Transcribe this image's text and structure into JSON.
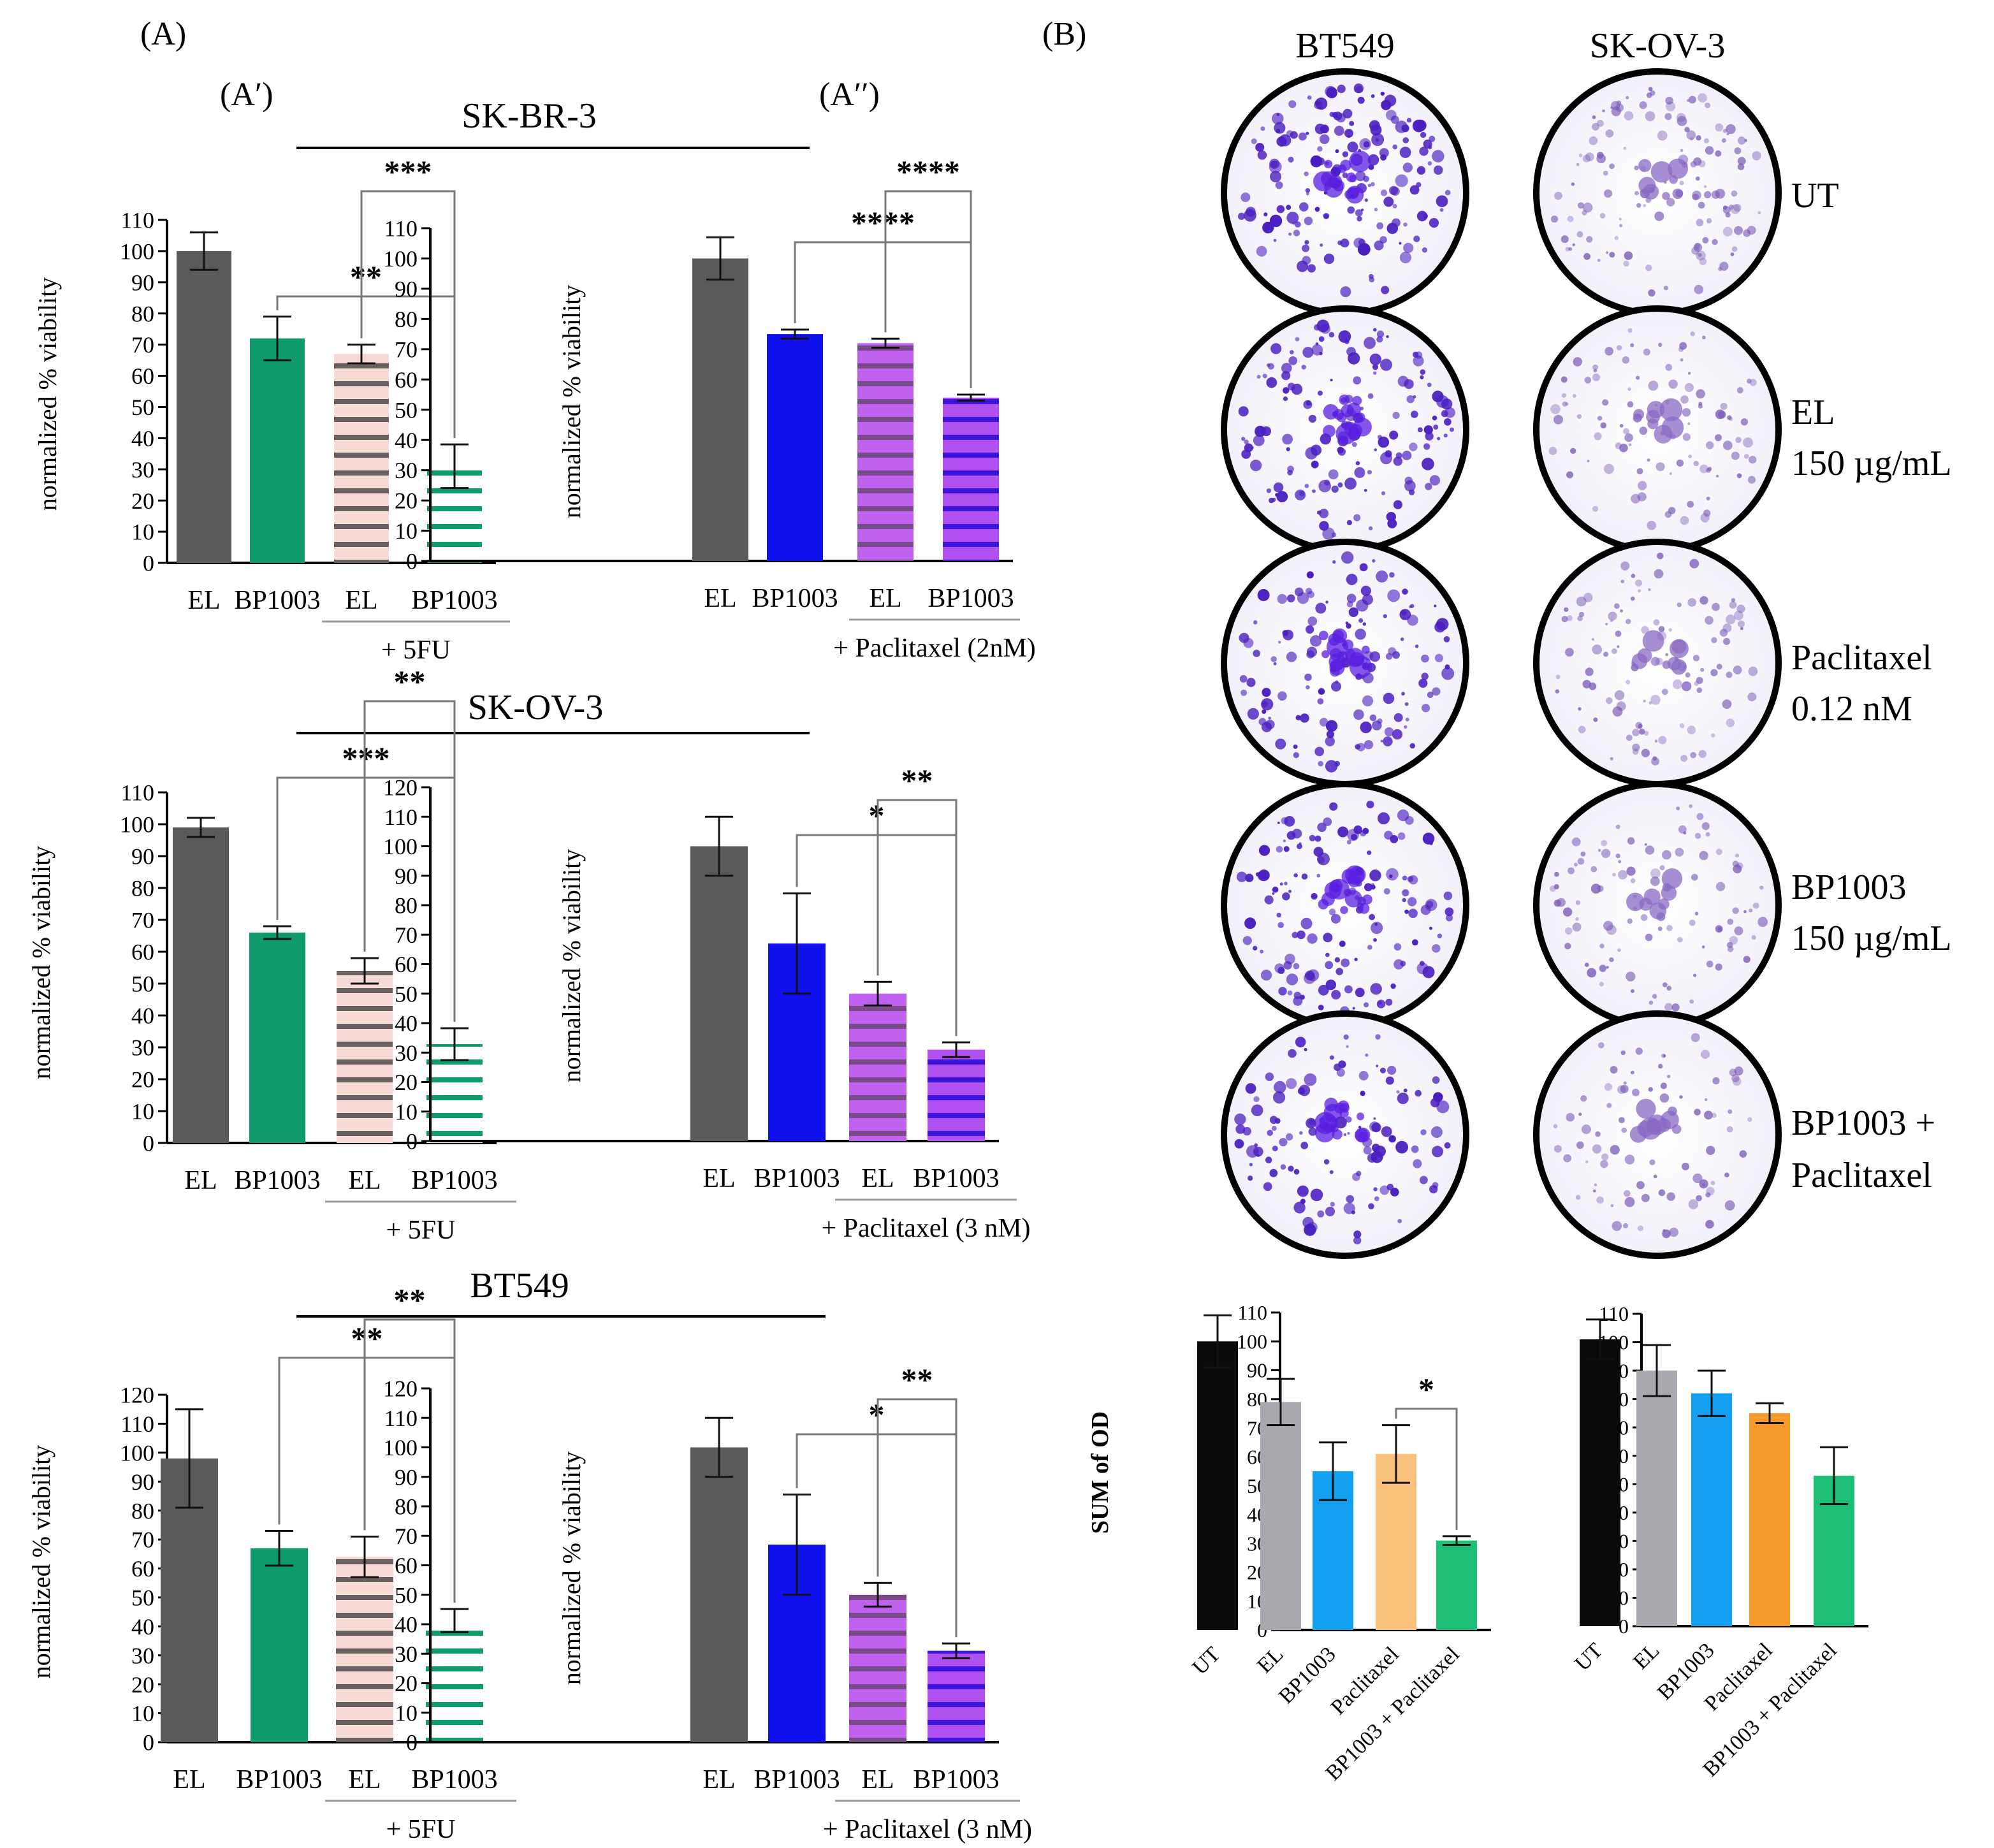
{
  "panel_labels": {
    "A": "(A)",
    "A_prime": "(A′)",
    "A_dprime": "(A′′)",
    "B": "(B)"
  },
  "cell_lines": {
    "sk_br_3": "SK-BR-3",
    "sk_ov_3": "SK-OV-3",
    "bt549": "BT549"
  },
  "colony_assay": {
    "col_titles": [
      "BT549",
      "SK-OV-3"
    ],
    "rows": [
      {
        "label": "UT",
        "label2": ""
      },
      {
        "label": "EL",
        "label2": "150 µg/mL"
      },
      {
        "label": "Paclitaxel",
        "label2": "0.12 nM"
      },
      {
        "label": "BP1003",
        "label2": "150 µg/mL"
      },
      {
        "label": "BP1003 +",
        "label2": "Paclitaxel"
      }
    ]
  },
  "colors": {
    "gray": "#5a5a5a",
    "green": "#0f9a6a",
    "blue": "#1010ee",
    "pink": "#f7d9d6",
    "stripe_dark": "#6a6060",
    "stripe_green": "#109b6b",
    "magenta": "#c060ee",
    "purple_stripe": "#7a4a8a",
    "violet": "#b050f0",
    "violet_stripe": "#3c14d8",
    "od_black": "#0a0a0a",
    "od_gray": "#a8a8ae",
    "od_blue": "#14a0f0",
    "od_peach": "#fbc27e",
    "od_orange": "#f79a2e",
    "od_green": "#1dbf78",
    "colony": "#4a2bb0"
  },
  "chart_data": [
    {
      "id": "skbr3_5fu",
      "type": "bar",
      "ylabel": "normalized % viability",
      "ylim": [
        0,
        110
      ],
      "ytick_step": 10,
      "categories": [
        "EL",
        "BP1003",
        "EL",
        "BP1003"
      ],
      "values": [
        100,
        72,
        67,
        31
      ],
      "errors": [
        6,
        7,
        3,
        7
      ],
      "group_label": "+ 5FU",
      "fills": [
        "gray",
        "green",
        "pink_stripe",
        "green_stripe"
      ],
      "significance": [
        {
          "from": 1,
          "to": 3,
          "label": "**"
        },
        {
          "from": 2,
          "to": 3,
          "label": "***"
        }
      ]
    },
    {
      "id": "skbr3_ptx",
      "type": "bar",
      "ylabel": "normalized % viability",
      "ylim": [
        0,
        110
      ],
      "ytick_step": 10,
      "categories": [
        "EL",
        "BP1003",
        "EL",
        "BP1003"
      ],
      "values": [
        100,
        75,
        72,
        54
      ],
      "errors": [
        7,
        1.5,
        1.5,
        1
      ],
      "group_label": "+ Paclitaxel (2nM)",
      "fills": [
        "gray",
        "blue",
        "magenta_stripe",
        "violet_stripe"
      ],
      "significance": [
        {
          "from": 1,
          "to": 3,
          "label": "****"
        },
        {
          "from": 2,
          "to": 3,
          "label": "****"
        }
      ]
    },
    {
      "id": "skov3_5fu",
      "type": "bar",
      "ylabel": "normalized % viability",
      "ylim": [
        0,
        110
      ],
      "ytick_step": 10,
      "categories": [
        "EL",
        "BP1003",
        "EL",
        "BP1003"
      ],
      "values": [
        99,
        66,
        54,
        31
      ],
      "errors": [
        3,
        2,
        4,
        5
      ],
      "group_label": "+ 5FU",
      "fills": [
        "gray",
        "green",
        "pink_stripe",
        "green_stripe"
      ],
      "significance": [
        {
          "from": 1,
          "to": 3,
          "label": "***"
        },
        {
          "from": 2,
          "to": 3,
          "label": "**"
        }
      ]
    },
    {
      "id": "skov3_ptx",
      "type": "bar",
      "ylabel": "normalized % viability",
      "ylim": [
        0,
        120
      ],
      "ytick_step": 10,
      "categories": [
        "EL",
        "BP1003",
        "EL",
        "BP1003"
      ],
      "values": [
        100,
        67,
        50,
        31
      ],
      "errors": [
        10,
        17,
        4,
        2.5
      ],
      "group_label": "+ Paclitaxel (3 nM)",
      "fills": [
        "gray",
        "blue",
        "magenta_stripe",
        "violet_stripe"
      ],
      "significance": [
        {
          "from": 1,
          "to": 3,
          "label": "*"
        },
        {
          "from": 2,
          "to": 3,
          "label": "**"
        }
      ]
    },
    {
      "id": "bt549_5fu",
      "type": "bar",
      "ylabel": "normalized % viability",
      "ylim": [
        0,
        120
      ],
      "ytick_step": 10,
      "categories": [
        "EL",
        "BP1003",
        "EL",
        "BP1003"
      ],
      "values": [
        98,
        67,
        64,
        42
      ],
      "errors": [
        17,
        6,
        7,
        4
      ],
      "group_label": "+ 5FU",
      "fills": [
        "gray",
        "green",
        "pink_stripe",
        "green_stripe"
      ],
      "significance": [
        {
          "from": 1,
          "to": 3,
          "label": "**"
        },
        {
          "from": 2,
          "to": 3,
          "label": "**"
        }
      ]
    },
    {
      "id": "bt549_ptx",
      "type": "bar",
      "ylabel": "normalized % viability",
      "ylim": [
        0,
        120
      ],
      "ytick_step": 10,
      "categories": [
        "EL",
        "BP1003",
        "EL",
        "BP1003"
      ],
      "values": [
        100,
        67,
        50,
        31
      ],
      "errors": [
        10,
        17,
        4,
        2.5
      ],
      "group_label": "+ Paclitaxel (3 nM)",
      "fills": [
        "gray",
        "blue",
        "magenta_stripe",
        "violet_stripe"
      ],
      "significance": [
        {
          "from": 1,
          "to": 3,
          "label": "*"
        },
        {
          "from": 2,
          "to": 3,
          "label": "**"
        }
      ]
    },
    {
      "id": "od_bt549",
      "type": "bar",
      "ylabel": "SUM of OD",
      "ylim": [
        0,
        110
      ],
      "ytick_step": 10,
      "categories": [
        "UT",
        "EL",
        "BP1003",
        "Paclitaxel",
        "BP1003 + Paclitaxel"
      ],
      "values": [
        100,
        79,
        55,
        61,
        31
      ],
      "errors": [
        9,
        8,
        10,
        10,
        1.5
      ],
      "fills": [
        "od_black",
        "od_gray",
        "od_blue",
        "od_peach",
        "od_green"
      ],
      "significance": [
        {
          "from": 3,
          "to": 4,
          "label": "*"
        }
      ]
    },
    {
      "id": "od_skov3",
      "type": "bar",
      "ylabel": "",
      "ylim": [
        0,
        110
      ],
      "ytick_step": 10,
      "categories": [
        "UT",
        "EL",
        "BP1003",
        "Paclitaxel",
        "BP1003 + Paclitaxel"
      ],
      "values": [
        101,
        90,
        82,
        75,
        53
      ],
      "errors": [
        7,
        9,
        8,
        3.5,
        10
      ],
      "fills": [
        "od_black",
        "od_gray",
        "od_blue",
        "od_orange",
        "od_green"
      ],
      "significance": []
    }
  ]
}
